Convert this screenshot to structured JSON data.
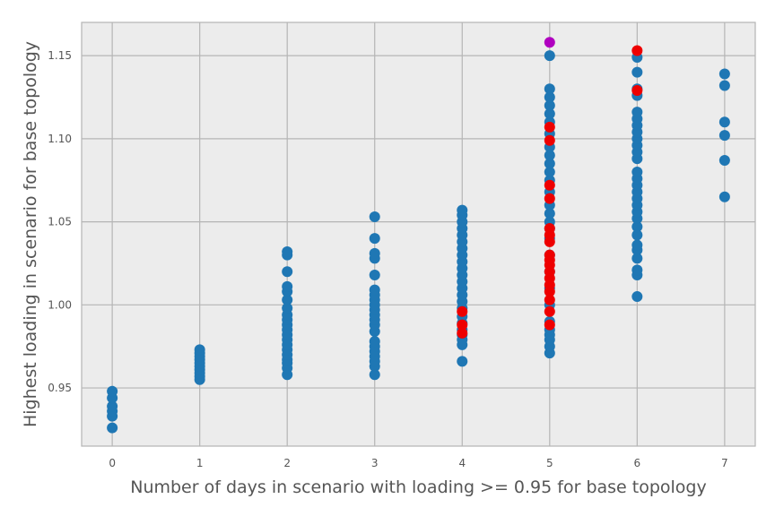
{
  "chart_data": {
    "type": "scatter",
    "title": "",
    "xlabel": "Number of days in scenario with loading >= 0.95 for base topology",
    "ylabel": "Highest loading in scenario for base topology",
    "xlim": [
      -0.35,
      7.35
    ],
    "ylim": [
      0.915,
      1.17
    ],
    "xticks": [
      0,
      1,
      2,
      3,
      4,
      5,
      6,
      7
    ],
    "yticks": [
      0.95,
      1.0,
      1.05,
      1.1,
      1.15
    ],
    "ytick_labels": [
      "0.95",
      "1.00",
      "1.05",
      "1.10",
      "1.15"
    ],
    "grid": true,
    "colors": {
      "blue": "#1f77b4",
      "red": "#ee0000",
      "purple": "#b000c0",
      "plot_bg": "#ececec",
      "grid": "#b5b5b5"
    },
    "series": [
      {
        "name": "blue",
        "color": "#1f77b4",
        "points": [
          [
            0,
            0.926
          ],
          [
            0,
            0.933
          ],
          [
            0,
            0.936
          ],
          [
            0,
            0.939
          ],
          [
            0,
            0.944
          ],
          [
            0,
            0.948
          ],
          [
            1,
            0.955
          ],
          [
            1,
            0.957
          ],
          [
            1,
            0.959
          ],
          [
            1,
            0.961
          ],
          [
            1,
            0.963
          ],
          [
            1,
            0.965
          ],
          [
            1,
            0.967
          ],
          [
            1,
            0.969
          ],
          [
            1,
            0.971
          ],
          [
            1,
            0.973
          ],
          [
            2,
            0.958
          ],
          [
            2,
            0.962
          ],
          [
            2,
            0.965
          ],
          [
            2,
            0.967
          ],
          [
            2,
            0.97
          ],
          [
            2,
            0.973
          ],
          [
            2,
            0.976
          ],
          [
            2,
            0.979
          ],
          [
            2,
            0.982
          ],
          [
            2,
            0.985
          ],
          [
            2,
            0.988
          ],
          [
            2,
            0.991
          ],
          [
            2,
            0.994
          ],
          [
            2,
            0.998
          ],
          [
            2,
            1.003
          ],
          [
            2,
            1.008
          ],
          [
            2,
            1.011
          ],
          [
            2,
            1.02
          ],
          [
            2,
            1.03
          ],
          [
            2,
            1.032
          ],
          [
            3,
            0.958
          ],
          [
            3,
            0.963
          ],
          [
            3,
            0.966
          ],
          [
            3,
            0.969
          ],
          [
            3,
            0.972
          ],
          [
            3,
            0.975
          ],
          [
            3,
            0.978
          ],
          [
            3,
            0.984
          ],
          [
            3,
            0.988
          ],
          [
            3,
            0.991
          ],
          [
            3,
            0.994
          ],
          [
            3,
            0.997
          ],
          [
            3,
            1.0
          ],
          [
            3,
            1.003
          ],
          [
            3,
            1.006
          ],
          [
            3,
            1.009
          ],
          [
            3,
            1.018
          ],
          [
            3,
            1.028
          ],
          [
            3,
            1.031
          ],
          [
            3,
            1.04
          ],
          [
            3,
            1.053
          ],
          [
            4,
            0.966
          ],
          [
            4,
            0.976
          ],
          [
            4,
            0.979
          ],
          [
            4,
            0.982
          ],
          [
            4,
            0.985
          ],
          [
            4,
            0.989
          ],
          [
            4,
            0.993
          ],
          [
            4,
            0.998
          ],
          [
            4,
            1.002
          ],
          [
            4,
            1.006
          ],
          [
            4,
            1.01
          ],
          [
            4,
            1.014
          ],
          [
            4,
            1.018
          ],
          [
            4,
            1.022
          ],
          [
            4,
            1.026
          ],
          [
            4,
            1.03
          ],
          [
            4,
            1.034
          ],
          [
            4,
            1.038
          ],
          [
            4,
            1.042
          ],
          [
            4,
            1.046
          ],
          [
            4,
            1.05
          ],
          [
            4,
            1.054
          ],
          [
            4,
            1.057
          ],
          [
            5,
            0.971
          ],
          [
            5,
            0.975
          ],
          [
            5,
            0.979
          ],
          [
            5,
            0.982
          ],
          [
            5,
            0.985
          ],
          [
            5,
            0.99
          ],
          [
            5,
            1.0
          ],
          [
            5,
            1.01
          ],
          [
            5,
            1.02
          ],
          [
            5,
            1.03
          ],
          [
            5,
            1.04
          ],
          [
            5,
            1.046
          ],
          [
            5,
            1.05
          ],
          [
            5,
            1.055
          ],
          [
            5,
            1.06
          ],
          [
            5,
            1.068
          ],
          [
            5,
            1.075
          ],
          [
            5,
            1.08
          ],
          [
            5,
            1.085
          ],
          [
            5,
            1.09
          ],
          [
            5,
            1.095
          ],
          [
            5,
            1.103
          ],
          [
            5,
            1.11
          ],
          [
            5,
            1.115
          ],
          [
            5,
            1.12
          ],
          [
            5,
            1.125
          ],
          [
            5,
            1.13
          ],
          [
            5,
            1.15
          ],
          [
            6,
            1.005
          ],
          [
            6,
            1.018
          ],
          [
            6,
            1.021
          ],
          [
            6,
            1.028
          ],
          [
            6,
            1.033
          ],
          [
            6,
            1.036
          ],
          [
            6,
            1.042
          ],
          [
            6,
            1.047
          ],
          [
            6,
            1.052
          ],
          [
            6,
            1.056
          ],
          [
            6,
            1.06
          ],
          [
            6,
            1.064
          ],
          [
            6,
            1.068
          ],
          [
            6,
            1.072
          ],
          [
            6,
            1.076
          ],
          [
            6,
            1.08
          ],
          [
            6,
            1.088
          ],
          [
            6,
            1.092
          ],
          [
            6,
            1.096
          ],
          [
            6,
            1.1
          ],
          [
            6,
            1.104
          ],
          [
            6,
            1.108
          ],
          [
            6,
            1.112
          ],
          [
            6,
            1.116
          ],
          [
            6,
            1.126
          ],
          [
            6,
            1.13
          ],
          [
            6,
            1.14
          ],
          [
            6,
            1.149
          ],
          [
            7,
            1.065
          ],
          [
            7,
            1.087
          ],
          [
            7,
            1.102
          ],
          [
            7,
            1.11
          ],
          [
            7,
            1.132
          ],
          [
            7,
            1.139
          ]
        ]
      },
      {
        "name": "red",
        "color": "#ee0000",
        "points": [
          [
            4,
            0.983
          ],
          [
            4,
            0.988
          ],
          [
            4,
            0.996
          ],
          [
            5,
            0.988
          ],
          [
            5,
            0.996
          ],
          [
            5,
            1.003
          ],
          [
            5,
            1.008
          ],
          [
            5,
            1.012
          ],
          [
            5,
            1.016
          ],
          [
            5,
            1.02
          ],
          [
            5,
            1.024
          ],
          [
            5,
            1.027
          ],
          [
            5,
            1.03
          ],
          [
            5,
            1.038
          ],
          [
            5,
            1.042
          ],
          [
            5,
            1.046
          ],
          [
            5,
            1.064
          ],
          [
            5,
            1.072
          ],
          [
            5,
            1.099
          ],
          [
            5,
            1.107
          ],
          [
            6,
            1.129
          ],
          [
            6,
            1.153
          ]
        ]
      },
      {
        "name": "purple",
        "color": "#b000c0",
        "points": [
          [
            5,
            1.158
          ]
        ]
      }
    ]
  }
}
